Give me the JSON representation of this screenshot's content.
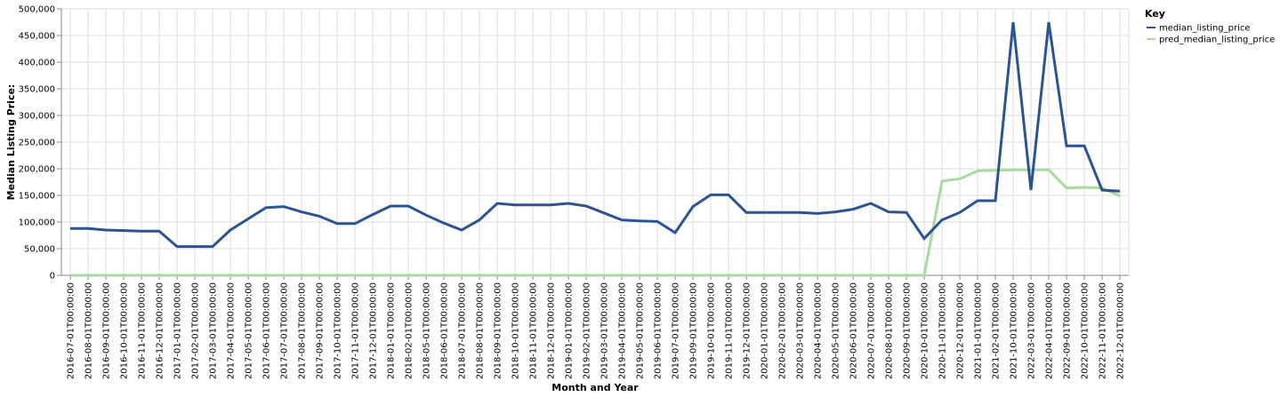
{
  "chart_data": {
    "type": "line",
    "xlabel": "Month and Year",
    "ylabel": "Median Listing Price:",
    "ylim": [
      0,
      500000
    ],
    "y_ticks": [
      0,
      50000,
      100000,
      150000,
      200000,
      250000,
      300000,
      350000,
      400000,
      450000,
      500000
    ],
    "y_tick_labels": [
      "0",
      "50,000",
      "100,000",
      "150,000",
      "200,000",
      "250,000",
      "300,000",
      "350,000",
      "400,000",
      "450,000",
      "500,000"
    ],
    "grid": true,
    "legend": {
      "title": "Key",
      "placement": "top-right"
    },
    "categories": [
      "2016-07-01T00:00:00",
      "2016-08-01T00:00:00",
      "2016-09-01T00:00:00",
      "2016-10-01T00:00:00",
      "2016-11-01T00:00:00",
      "2016-12-01T00:00:00",
      "2017-01-01T00:00:00",
      "2017-02-01T00:00:00",
      "2017-03-01T00:00:00",
      "2017-04-01T00:00:00",
      "2017-05-01T00:00:00",
      "2017-06-01T00:00:00",
      "2017-07-01T00:00:00",
      "2017-08-01T00:00:00",
      "2017-09-01T00:00:00",
      "2017-10-01T00:00:00",
      "2017-11-01T00:00:00",
      "2017-12-01T00:00:00",
      "2018-01-01T00:00:00",
      "2018-02-01T00:00:00",
      "2018-05-01T00:00:00",
      "2018-06-01T00:00:00",
      "2018-07-01T00:00:00",
      "2018-08-01T00:00:00",
      "2018-09-01T00:00:00",
      "2018-10-01T00:00:00",
      "2018-11-01T00:00:00",
      "2018-12-01T00:00:00",
      "2019-01-01T00:00:00",
      "2019-02-01T00:00:00",
      "2019-03-01T00:00:00",
      "2019-04-01T00:00:00",
      "2019-05-01T00:00:00",
      "2019-06-01T00:00:00",
      "2019-07-01T00:00:00",
      "2019-09-01T00:00:00",
      "2019-10-01T00:00:00",
      "2019-11-01T00:00:00",
      "2019-12-01T00:00:00",
      "2020-01-01T00:00:00",
      "2020-02-01T00:00:00",
      "2020-03-01T00:00:00",
      "2020-04-01T00:00:00",
      "2020-05-01T00:00:00",
      "2020-06-01T00:00:00",
      "2020-07-01T00:00:00",
      "2020-08-01T00:00:00",
      "2020-09-01T00:00:00",
      "2020-10-01T00:00:00",
      "2020-11-01T00:00:00",
      "2020-12-01T00:00:00",
      "2021-01-01T00:00:00",
      "2021-02-01T00:00:00",
      "2021-10-01T00:00:00",
      "2022-03-01T00:00:00",
      "2022-04-01T00:00:00",
      "2022-09-01T00:00:00",
      "2022-10-01T00:00:00",
      "2022-11-01T00:00:00",
      "2022-12-01T00:00:00"
    ],
    "series": [
      {
        "name": "median_listing_price",
        "color": "#2c5492",
        "values": [
          88000,
          88000,
          85000,
          84000,
          83000,
          83000,
          54000,
          54000,
          54000,
          85000,
          106000,
          127000,
          129000,
          119000,
          111000,
          97000,
          97000,
          114000,
          130000,
          130000,
          113000,
          98000,
          85000,
          104000,
          135000,
          132000,
          132000,
          132000,
          135000,
          130000,
          117000,
          104000,
          102000,
          101000,
          80000,
          129000,
          151000,
          151000,
          118000,
          118000,
          118000,
          118000,
          116000,
          119000,
          124000,
          135000,
          119000,
          118000,
          69000,
          104000,
          118000,
          140000,
          140000,
          475000,
          160000,
          475000,
          243000,
          243000,
          160000,
          158000
        ]
      },
      {
        "name": "pred_median_listing_price",
        "color": "#a8dba0",
        "values": [
          0,
          0,
          0,
          0,
          0,
          0,
          0,
          0,
          0,
          0,
          0,
          0,
          0,
          0,
          0,
          0,
          0,
          0,
          0,
          0,
          0,
          0,
          0,
          0,
          0,
          0,
          0,
          0,
          0,
          0,
          0,
          0,
          0,
          0,
          0,
          0,
          0,
          0,
          0,
          0,
          0,
          0,
          0,
          0,
          0,
          0,
          0,
          0,
          0,
          177000,
          181000,
          196000,
          197000,
          198000,
          198000,
          198000,
          164000,
          165000,
          164000,
          149000
        ]
      }
    ]
  }
}
